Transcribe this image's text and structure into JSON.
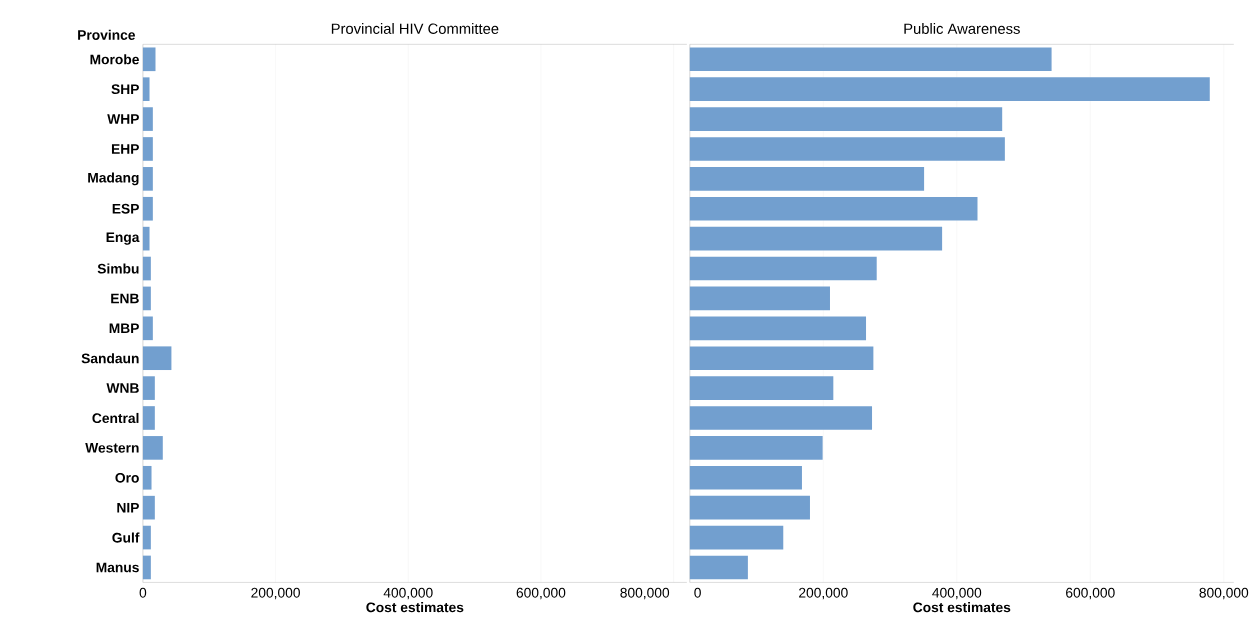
{
  "chart_data": [
    {
      "type": "bar",
      "orientation": "horizontal",
      "title": "Provincial HIV Committee",
      "xlabel": "Cost estimates",
      "ylabel": "Province",
      "categories": [
        "Morobe",
        "SHP",
        "WHP",
        "EHP",
        "Madang",
        "ESP",
        "Enga",
        "Simbu",
        "ENB",
        "MBP",
        "Sandaun",
        "WNB",
        "Central",
        "Western",
        "Oro",
        "NIP",
        "Gulf",
        "Manus"
      ],
      "values": [
        19000,
        10000,
        15000,
        15000,
        15000,
        15000,
        10000,
        12000,
        12000,
        15000,
        43000,
        18000,
        18000,
        30000,
        13000,
        18000,
        12000,
        12000
      ],
      "color": "#729fcf",
      "xlim": [
        0,
        820000
      ],
      "xticks": [
        {
          "value": 0,
          "label": "0"
        },
        {
          "value": 200000,
          "label": "200,000"
        },
        {
          "value": 400000,
          "label": "400,000"
        },
        {
          "value": 600000,
          "label": "600,000"
        },
        {
          "value": 800000,
          "label": "800,000"
        }
      ],
      "grid": "x"
    },
    {
      "type": "bar",
      "orientation": "horizontal",
      "title": "Public Awareness",
      "xlabel": "Cost estimates",
      "categories": [
        null,
        null,
        null,
        null,
        null,
        null,
        null,
        null,
        null,
        null,
        null,
        null,
        null,
        null,
        null,
        null,
        null,
        null
      ],
      "values": [
        542000,
        779000,
        468000,
        472000,
        351000,
        431000,
        378000,
        280000,
        210000,
        264000,
        275000,
        215000,
        273000,
        199000,
        168000,
        180000,
        140000,
        87000
      ],
      "color": "#729fcf",
      "xlim": [
        0,
        815000
      ],
      "xticks": [
        {
          "value": 0,
          "label": "0"
        },
        {
          "value": 200000,
          "label": "200,000"
        },
        {
          "value": 400000,
          "label": "400,000"
        },
        {
          "value": 600000,
          "label": "600,000"
        },
        {
          "value": 800000,
          "label": "800,000"
        }
      ],
      "grid": "x",
      "tick_labels": "x"
    }
  ]
}
